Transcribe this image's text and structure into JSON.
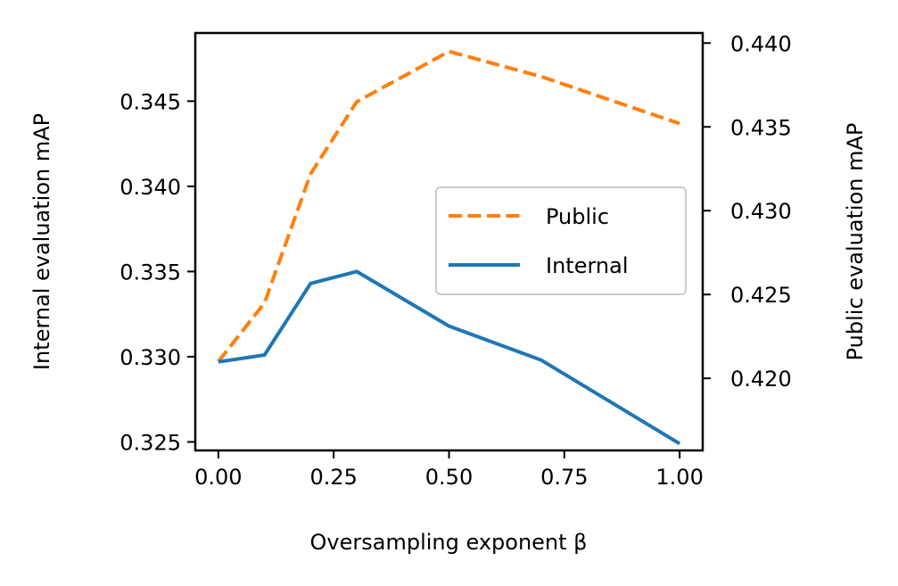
{
  "chart_data": {
    "type": "line",
    "title": "",
    "xlabel": "Oversampling exponent β",
    "ylabel_left": "Internal evaluation mAP",
    "ylabel_right": "Public evaluation mAP",
    "x_ticks": [
      0.0,
      0.25,
      0.5,
      0.75,
      1.0
    ],
    "x_tick_labels": [
      "0.00",
      "0.25",
      "0.50",
      "0.75",
      "1.00"
    ],
    "y_left_ticks": [
      0.325,
      0.33,
      0.335,
      0.34,
      0.345
    ],
    "y_left_tick_labels": [
      "0.325",
      "0.330",
      "0.335",
      "0.340",
      "0.345"
    ],
    "y_right_ticks": [
      0.42,
      0.425,
      0.43,
      0.435,
      0.44
    ],
    "y_right_tick_labels": [
      "0.420",
      "0.425",
      "0.430",
      "0.435",
      "0.440"
    ],
    "xlim": [
      -0.05,
      1.05
    ],
    "ylim_left": [
      0.3245,
      0.349
    ],
    "ylim_right": [
      0.4157,
      0.4406
    ],
    "legend_position": "center-right",
    "series": [
      {
        "name": "Public",
        "axis": "right",
        "style": "dashed",
        "color": "#ff7f0e",
        "x": [
          0.0,
          0.1,
          0.2,
          0.3,
          0.5,
          0.7,
          1.0
        ],
        "y": [
          0.421,
          0.4245,
          0.4322,
          0.4365,
          0.4395,
          0.438,
          0.4352
        ]
      },
      {
        "name": "Internal",
        "axis": "left",
        "style": "solid",
        "color": "#1f77b4",
        "x": [
          0.0,
          0.1,
          0.2,
          0.3,
          0.5,
          0.7,
          1.0
        ],
        "y": [
          0.3297,
          0.3301,
          0.3343,
          0.335,
          0.3318,
          0.3298,
          0.3249
        ]
      }
    ]
  }
}
